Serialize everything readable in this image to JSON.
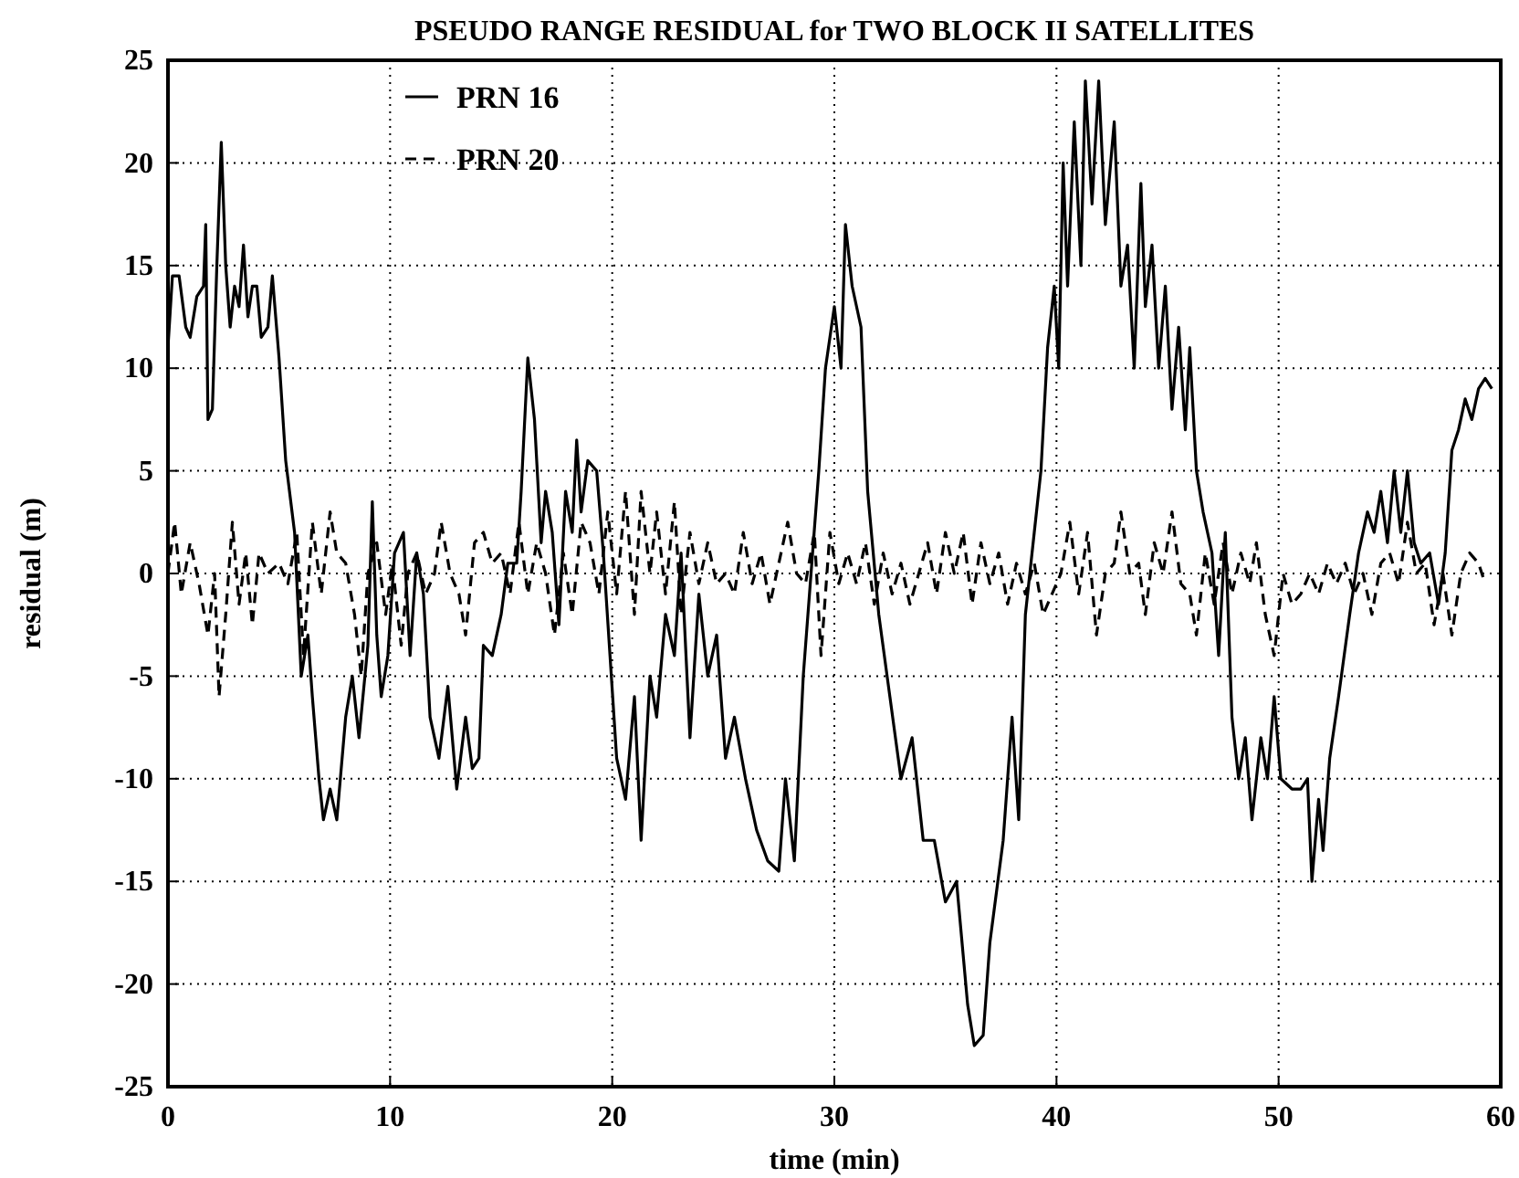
{
  "chart_data": {
    "type": "line",
    "title": "PSEUDO RANGE RESIDUAL for TWO BLOCK II SATELLITES",
    "xlabel": "time (min)",
    "ylabel": "residual (m)",
    "xlim": [
      0,
      60
    ],
    "xticks": [
      0,
      10,
      20,
      30,
      40,
      50,
      60
    ],
    "ylim": [
      -25,
      25
    ],
    "yticks": [
      -25,
      -20,
      -15,
      -10,
      -5,
      0,
      5,
      10,
      15,
      20,
      25
    ],
    "grid": true,
    "legend": "top left",
    "series": [
      {
        "name": "PRN 16",
        "color": "#000000",
        "line_style": "solid",
        "x": [
          0,
          0.2,
          0.5,
          0.8,
          1.0,
          1.3,
          1.6,
          1.7,
          1.8,
          2.0,
          2.2,
          2.4,
          2.6,
          2.8,
          3.0,
          3.2,
          3.4,
          3.6,
          3.8,
          4.0,
          4.2,
          4.5,
          4.7,
          5.0,
          5.3,
          5.7,
          6.0,
          6.3,
          6.5,
          6.8,
          7.0,
          7.3,
          7.6,
          8.0,
          8.3,
          8.6,
          9.0,
          9.2,
          9.4,
          9.6,
          9.9,
          10.2,
          10.6,
          10.9,
          11.2,
          11.5,
          11.8,
          12.2,
          12.6,
          13.0,
          13.4,
          13.7,
          14.0,
          14.2,
          14.6,
          15.0,
          15.3,
          15.7,
          15.9,
          16.2,
          16.5,
          16.8,
          17.0,
          17.3,
          17.6,
          17.9,
          18.2,
          18.4,
          18.6,
          18.9,
          19.3,
          19.6,
          19.9,
          20.2,
          20.6,
          21.0,
          21.3,
          21.7,
          22.0,
          22.4,
          22.8,
          23.1,
          23.5,
          23.9,
          24.3,
          24.7,
          25.1,
          25.5,
          26.0,
          26.5,
          27.0,
          27.5,
          27.8,
          28.2,
          28.6,
          29.3,
          29.6,
          30.0,
          30.3,
          30.5,
          30.8,
          31.2,
          31.5,
          32.0,
          32.5,
          33.0,
          33.5,
          34.0,
          34.5,
          35.0,
          35.5,
          36.0,
          36.3,
          36.7,
          37.0,
          37.6,
          38.0,
          38.3,
          38.6,
          39.0,
          39.3,
          39.6,
          39.9,
          40.1,
          40.3,
          40.5,
          40.8,
          41.1,
          41.3,
          41.6,
          41.9,
          42.2,
          42.6,
          42.9,
          43.2,
          43.5,
          43.8,
          44.0,
          44.3,
          44.6,
          44.9,
          45.2,
          45.5,
          45.8,
          46.0,
          46.3,
          46.6,
          47.0,
          47.3,
          47.6,
          47.9,
          48.2,
          48.5,
          48.8,
          49.2,
          49.5,
          49.8,
          50.1,
          50.6,
          51.0,
          51.3,
          51.5,
          51.8,
          52.0,
          52.3,
          52.7,
          53.2,
          53.6,
          54.0,
          54.3,
          54.6,
          54.9,
          55.2,
          55.5,
          55.8,
          56.1,
          56.4,
          56.8,
          57.2,
          57.5,
          57.8,
          58.1,
          58.4,
          58.7,
          59.0,
          59.3,
          59.6
        ],
        "values": [
          11,
          14.5,
          14.5,
          12,
          11.5,
          13.5,
          14,
          17,
          7.5,
          8,
          15,
          21,
          15,
          12,
          14,
          13,
          16,
          12.5,
          14,
          14,
          11.5,
          12,
          14.5,
          10.5,
          5.5,
          2,
          -5,
          -3,
          -6,
          -10,
          -12,
          -10.5,
          -12,
          -7,
          -5,
          -8,
          -3.5,
          3.5,
          -3,
          -6,
          -4,
          1,
          2,
          -4,
          1,
          -1,
          -7,
          -9,
          -5.5,
          -10.5,
          -7,
          -9.5,
          -9,
          -3.5,
          -4,
          -2,
          0.5,
          0.5,
          4,
          10.5,
          7.5,
          1.5,
          4,
          2,
          -2.5,
          4,
          2,
          6.5,
          3,
          5.5,
          5,
          1,
          -4,
          -9,
          -11,
          -6,
          -13,
          -5,
          -7,
          -2,
          -4,
          1,
          -8,
          -1,
          -5,
          -3,
          -9,
          -7,
          -10,
          -12.5,
          -14,
          -14.5,
          -10,
          -14,
          -5,
          5,
          10,
          13,
          10,
          17,
          14,
          12,
          4,
          -2,
          -6,
          -10,
          -8,
          -13,
          -13,
          -16,
          -15,
          -21,
          -23,
          -22.5,
          -18,
          -13,
          -7,
          -12,
          -2,
          2,
          5,
          11,
          14,
          10,
          20,
          14,
          22,
          15,
          24,
          18,
          24,
          17,
          22,
          14,
          16,
          10,
          19,
          13,
          16,
          10,
          14,
          8,
          12,
          7,
          11,
          5,
          3,
          1,
          -4,
          2,
          -7,
          -10,
          -8,
          -12,
          -8,
          -10,
          -6,
          -10,
          -10.5,
          -10.5,
          -10,
          -15,
          -11,
          -13.5,
          -9,
          -6,
          -2,
          1,
          3,
          2,
          4,
          1.5,
          5,
          2,
          5,
          1.5,
          0.5,
          1,
          -1.5,
          1,
          6,
          7,
          8.5,
          7.5,
          9,
          9.5,
          9
        ]
      },
      {
        "name": "PRN 20",
        "color": "#000000",
        "line_style": "dashed",
        "x": [
          0,
          0.3,
          0.6,
          1,
          1.4,
          1.8,
          2.1,
          2.3,
          2.6,
          2.9,
          3.2,
          3.5,
          3.8,
          4.1,
          4.5,
          5,
          5.4,
          5.8,
          6.1,
          6.5,
          6.9,
          7.3,
          7.6,
          8.0,
          8.4,
          8.7,
          9,
          9.4,
          9.8,
          10.1,
          10.5,
          10.8,
          11.2,
          11.6,
          12,
          12.3,
          12.7,
          13.1,
          13.4,
          13.8,
          14.2,
          14.6,
          15,
          15.4,
          15.8,
          16.2,
          16.6,
          17,
          17.4,
          17.8,
          18.2,
          18.6,
          19,
          19.4,
          19.8,
          20.2,
          20.6,
          21,
          21.3,
          21.7,
          22,
          22.4,
          22.8,
          23.1,
          23.5,
          23.9,
          24.3,
          24.7,
          25.1,
          25.5,
          25.9,
          26.3,
          26.7,
          27.1,
          27.5,
          27.9,
          28.3,
          28.7,
          29.1,
          29.4,
          29.8,
          30.2,
          30.6,
          31,
          31.4,
          31.8,
          32.2,
          32.6,
          33,
          33.4,
          33.8,
          34.2,
          34.6,
          35,
          35.4,
          35.8,
          36.2,
          36.6,
          37,
          37.4,
          37.8,
          38.2,
          38.6,
          39,
          39.4,
          39.8,
          40.2,
          40.6,
          41,
          41.4,
          41.8,
          42.2,
          42.6,
          42.9,
          43.3,
          43.7,
          44,
          44.4,
          44.8,
          45.2,
          45.6,
          46,
          46.3,
          46.7,
          47.1,
          47.5,
          47.9,
          48.3,
          48.7,
          49,
          49.4,
          49.8,
          50.2,
          50.6,
          51,
          51.4,
          51.8,
          52.2,
          52.6,
          53,
          53.4,
          53.8,
          54.2,
          54.6,
          55,
          55.4,
          55.8,
          56.2,
          56.6,
          57,
          57.4,
          57.8,
          58.2,
          58.6,
          59,
          59.3
        ],
        "values": [
          0,
          2.5,
          -1,
          1.5,
          -0.5,
          -3,
          0,
          -6,
          -2,
          2.5,
          -1.5,
          1,
          -2.5,
          1,
          0,
          0.5,
          -0.5,
          2,
          -4,
          2.5,
          -1,
          3,
          1,
          0.5,
          -2,
          -5,
          0,
          1.5,
          -2,
          0.5,
          -3.5,
          0,
          1,
          -1,
          0,
          2.5,
          0,
          -1,
          -3,
          1.5,
          2,
          0.5,
          1,
          -1,
          2.5,
          -1,
          1.5,
          0,
          -3,
          1,
          -2,
          2.5,
          1.5,
          -1,
          3,
          -1,
          4,
          -2,
          4,
          0,
          3,
          -1,
          3.5,
          -2,
          2,
          -0.5,
          1.5,
          -0.5,
          0,
          -1,
          2,
          -0.5,
          1,
          -1.5,
          0.5,
          2.5,
          0,
          -0.5,
          2,
          -4,
          2,
          -0.5,
          1,
          -0.5,
          1.5,
          -1.5,
          1,
          -1,
          0.5,
          -1.5,
          0,
          1.5,
          -1,
          2,
          0,
          2,
          -1.5,
          1.5,
          -0.5,
          1,
          -1.5,
          0.5,
          -1,
          0.5,
          -2,
          -1,
          0,
          2.5,
          -1,
          2,
          -3,
          0,
          0.5,
          3,
          0,
          0.5,
          -2,
          1.5,
          0,
          3,
          -0.5,
          -1,
          -3,
          1,
          -1.5,
          1.5,
          -1,
          1,
          -0.5,
          1.5,
          -2,
          -4,
          0,
          -1.5,
          -1,
          0,
          -1,
          0.5,
          -0.5,
          0.5,
          -1,
          0,
          -2,
          0.5,
          1,
          -0.5,
          2.5,
          0,
          0.5,
          -2.5,
          0,
          -3,
          0,
          1,
          0.5,
          -0.5
        ]
      }
    ]
  }
}
